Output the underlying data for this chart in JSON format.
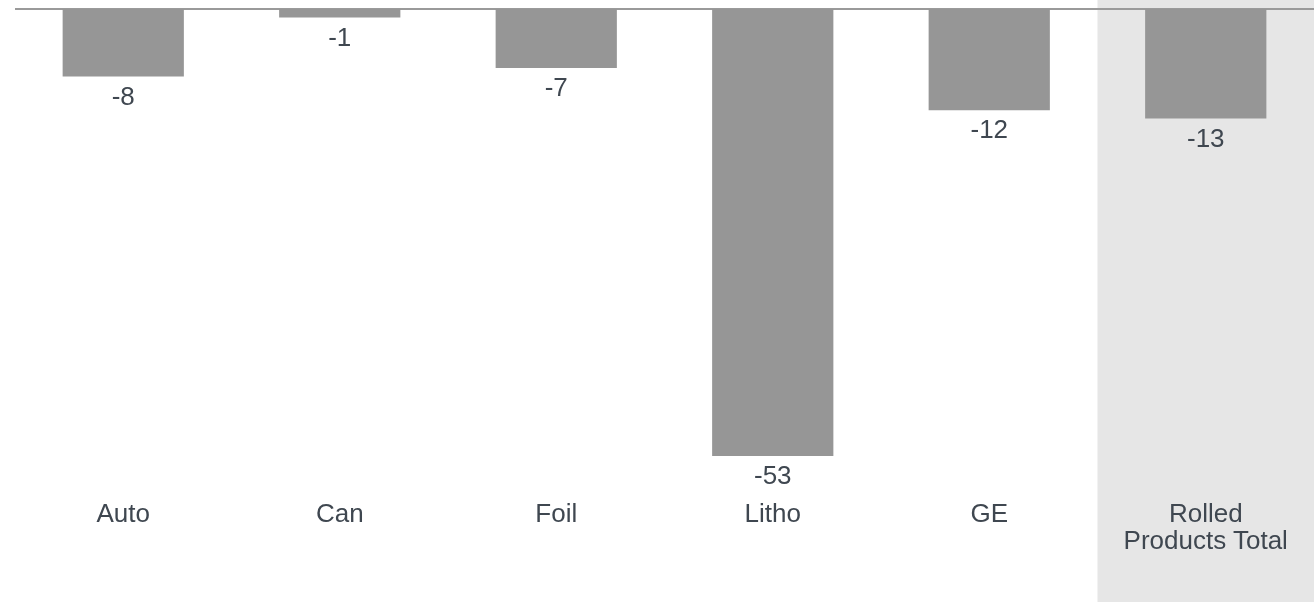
{
  "chart_data": {
    "type": "bar",
    "categories": [
      "Auto",
      "Can",
      "Foil",
      "Litho",
      "GE",
      "Rolled\nProducts Total"
    ],
    "values": [
      -8,
      -1,
      -7,
      -53,
      -12,
      -13
    ],
    "color": "#969696",
    "data_labels": true,
    "tick_labels": "x",
    "bands": [
      {
        "axis": "x",
        "from": "Rolled\nProducts Total",
        "to": "Rolled\nProducts Total",
        "color": "#e6e6e6"
      }
    ]
  }
}
